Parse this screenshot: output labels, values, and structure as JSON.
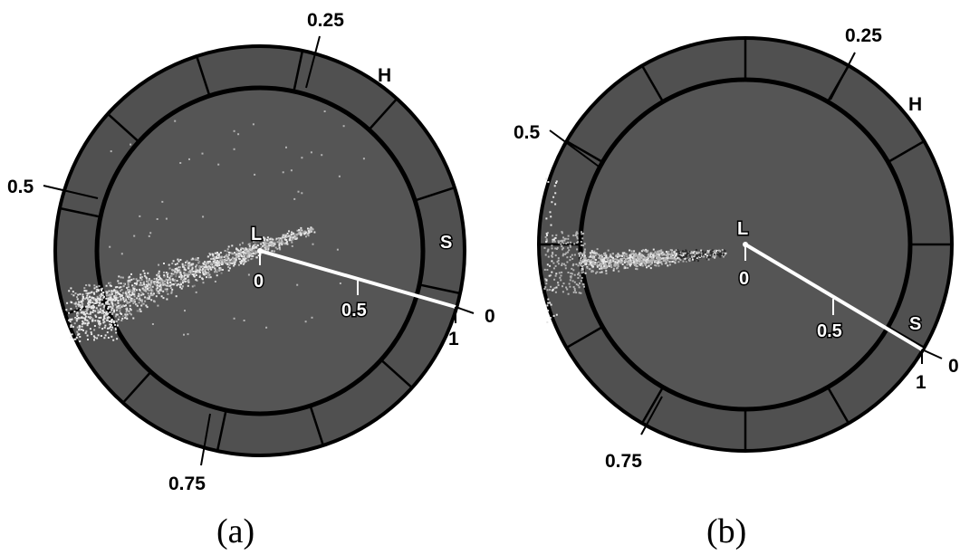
{
  "colors": {
    "disk": "#555555",
    "ring": "#505050",
    "edge": "#000000",
    "axis": "#ffffff",
    "points_light": "#e6e6e6",
    "points_mid": "#b4b4b4",
    "points_dark": "#2a2a2a"
  },
  "panels": [
    {
      "id": "a",
      "caption": "(a)",
      "hue_labels": [
        "0.25",
        "0.5",
        "0.75"
      ],
      "hue_axis_label": "H",
      "lightness_label": "L",
      "lightness_origin": "0",
      "saturation_axis_label": "S",
      "saturation_ticks": [
        "0",
        "0.5",
        "1"
      ],
      "hue_zero_label": "0",
      "segments": 12,
      "scatter": "elongated cloud of pale points from the centre toward hue ≈ 0.55, heaviest near the outer ring"
    },
    {
      "id": "b",
      "caption": "(b)",
      "hue_labels": [
        "0.25",
        "0.5",
        "0.75"
      ],
      "hue_axis_label": "H",
      "lightness_label": "L",
      "lightness_origin": "0",
      "saturation_axis_label": "S",
      "saturation_ticks": [
        "0",
        "0.5",
        "1"
      ],
      "hue_zero_label": "0",
      "segments": 12,
      "scatter": "narrow horizontal cloud of points toward hue ≈ 0.5 with a dark core near the centre"
    }
  ]
}
